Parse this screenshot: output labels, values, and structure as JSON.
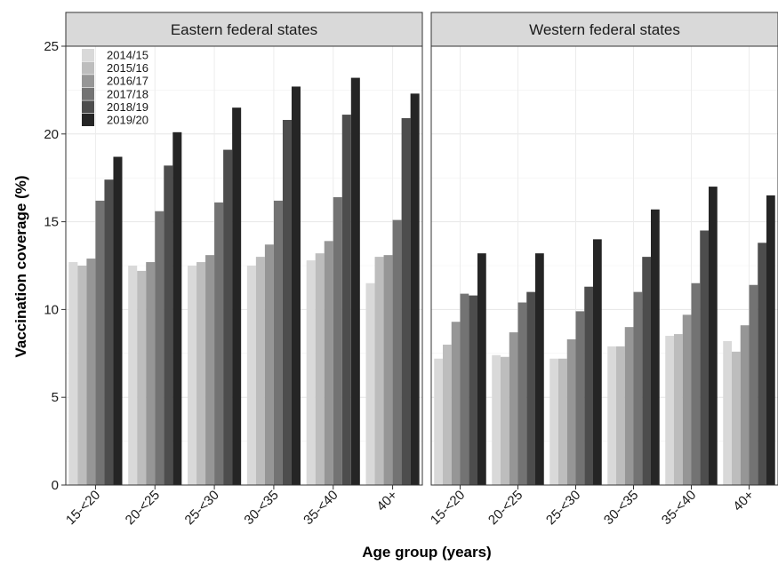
{
  "chart_data": {
    "type": "bar",
    "xlabel": "Age group (years)",
    "ylabel": "Vaccination coverage (%)",
    "ylim": [
      0,
      25
    ],
    "yticks": [
      0,
      5,
      10,
      15,
      20,
      25
    ],
    "grid": true,
    "legend_placement": "top-left",
    "categories": [
      "15-<20",
      "20-<25",
      "25-<30",
      "30-<35",
      "35-<40",
      "40+"
    ],
    "series_names": [
      "2014/15",
      "2015/16",
      "2016/17",
      "2017/18",
      "2018/19",
      "2019/20"
    ],
    "series_colors": [
      "#d9d9d9",
      "#bdbdbd",
      "#969696",
      "#737373",
      "#4d4d4d",
      "#252525"
    ],
    "panels": [
      {
        "title": "Eastern federal states",
        "series": [
          {
            "name": "2014/15",
            "values": [
              12.7,
              12.5,
              12.5,
              12.5,
              12.8,
              11.5
            ]
          },
          {
            "name": "2015/16",
            "values": [
              12.5,
              12.2,
              12.7,
              13.0,
              13.2,
              13.0
            ]
          },
          {
            "name": "2016/17",
            "values": [
              12.9,
              12.7,
              13.1,
              13.7,
              13.9,
              13.1
            ]
          },
          {
            "name": "2017/18",
            "values": [
              16.2,
              15.6,
              16.1,
              16.2,
              16.4,
              15.1
            ]
          },
          {
            "name": "2018/19",
            "values": [
              17.4,
              18.2,
              19.1,
              20.8,
              21.1,
              20.9
            ]
          },
          {
            "name": "2019/20",
            "values": [
              18.7,
              20.1,
              21.5,
              22.7,
              23.2,
              22.3
            ]
          }
        ]
      },
      {
        "title": "Western federal states",
        "series": [
          {
            "name": "2014/15",
            "values": [
              7.2,
              7.4,
              7.2,
              7.9,
              8.5,
              8.2
            ]
          },
          {
            "name": "2015/16",
            "values": [
              8.0,
              7.3,
              7.2,
              7.9,
              8.6,
              7.6
            ]
          },
          {
            "name": "2016/17",
            "values": [
              9.3,
              8.7,
              8.3,
              9.0,
              9.7,
              9.1
            ]
          },
          {
            "name": "2017/18",
            "values": [
              10.9,
              10.4,
              9.9,
              11.0,
              11.5,
              11.4
            ]
          },
          {
            "name": "2018/19",
            "values": [
              10.8,
              11.0,
              11.3,
              13.0,
              14.5,
              13.8
            ]
          },
          {
            "name": "2019/20",
            "values": [
              13.2,
              13.2,
              14.0,
              15.7,
              17.0,
              16.5
            ]
          }
        ]
      }
    ]
  }
}
